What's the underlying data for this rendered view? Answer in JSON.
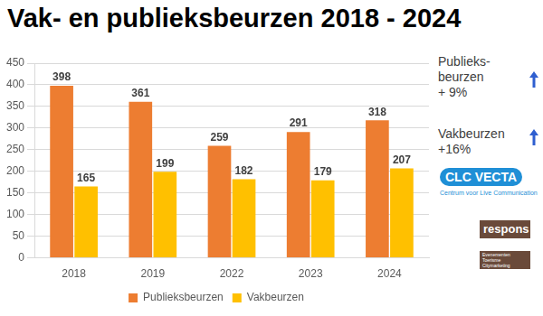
{
  "chart_data": {
    "type": "bar",
    "title": "Vak- en publieksbeurzen 2018 - 2024",
    "categories": [
      "2018",
      "2019",
      "2022",
      "2023",
      "2024"
    ],
    "series": [
      {
        "name": "Publieksbeurzen",
        "color": "#ed7d31",
        "values": [
          398,
          361,
          259,
          291,
          318
        ]
      },
      {
        "name": "Vakbeurzen",
        "color": "#ffc000",
        "values": [
          165,
          199,
          182,
          179,
          207
        ]
      }
    ],
    "ylim": [
      0,
      450
    ],
    "yticks": [
      0,
      50,
      100,
      150,
      200,
      250,
      300,
      350,
      400,
      450
    ],
    "grid": true,
    "legend": "bottom",
    "data_labels": true,
    "annotations": [
      "Publieks-\nbeurzen\n+ 9%",
      "Vakbeurzen\n+16%",
      "CLC VECTA",
      "Centrum voor Live Communication",
      "respons",
      "Evenementen Toerisme Citymarketing"
    ]
  }
}
